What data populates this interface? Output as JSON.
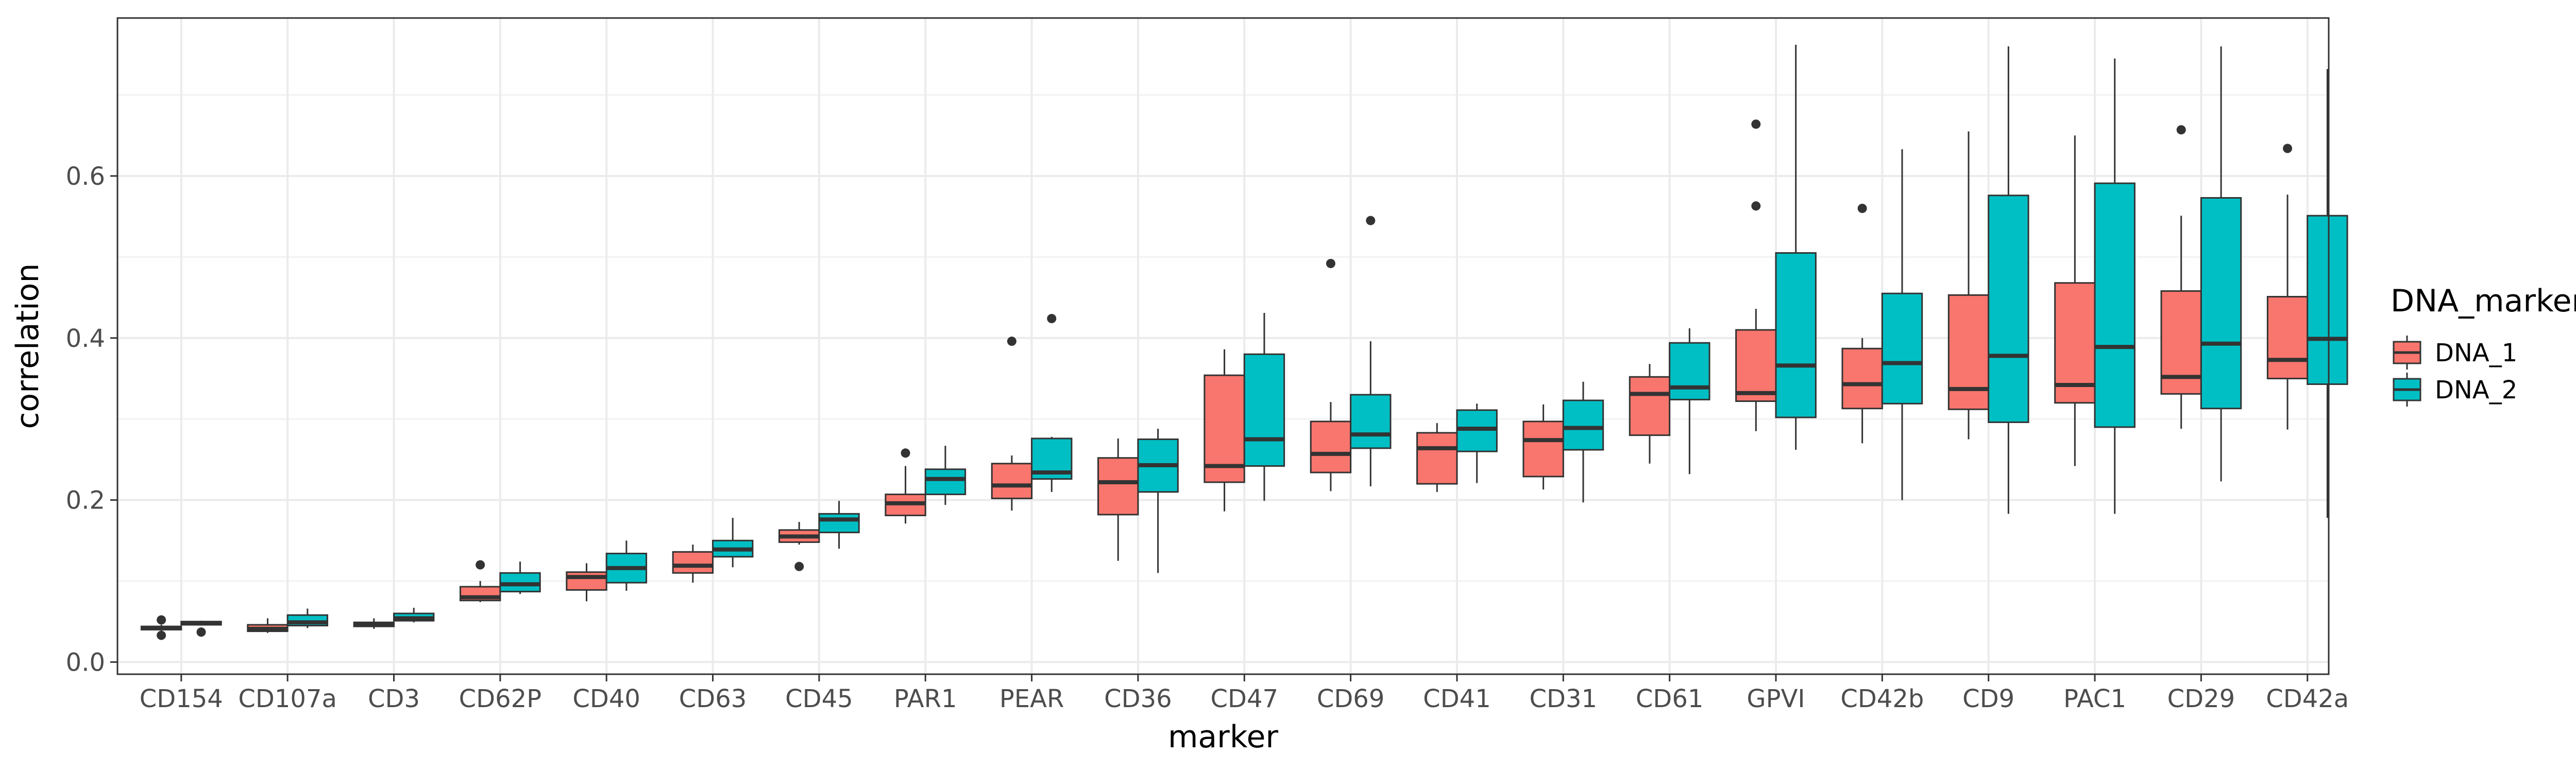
{
  "chart_data": {
    "type": "boxplot",
    "xlabel": "marker",
    "ylabel": "correlation",
    "ylim": [
      -0.015,
      0.795
    ],
    "yticks": [
      0.0,
      0.2,
      0.4,
      0.6
    ],
    "ytick_labels": [
      "0.0",
      "0.2",
      "0.4",
      "0.6"
    ],
    "grid": true,
    "legend": {
      "title": "DNA_marker",
      "placement": "right",
      "entries": [
        "DNA_1",
        "DNA_2"
      ]
    },
    "colors": {
      "DNA_1": "#F8766D",
      "DNA_2": "#00BFC4"
    },
    "categories": [
      "CD154",
      "CD107a",
      "CD3",
      "CD62P",
      "CD40",
      "CD63",
      "CD45",
      "PAR1",
      "PEAR",
      "CD36",
      "CD47",
      "CD69",
      "CD41",
      "CD31",
      "CD61",
      "GPVI",
      "CD42b",
      "CD9",
      "PAC1",
      "CD29",
      "CD42a"
    ],
    "series": [
      {
        "name": "DNA_1",
        "boxes": [
          {
            "whisker_low": 0.038,
            "q1": 0.04,
            "median": 0.042,
            "q3": 0.044,
            "whisker_high": 0.046,
            "outliers": [
              0.052,
              0.033
            ]
          },
          {
            "whisker_low": 0.036,
            "q1": 0.038,
            "median": 0.041,
            "q3": 0.046,
            "whisker_high": 0.054,
            "outliers": []
          },
          {
            "whisker_low": 0.041,
            "q1": 0.044,
            "median": 0.047,
            "q3": 0.049,
            "whisker_high": 0.054,
            "outliers": []
          },
          {
            "whisker_low": 0.074,
            "q1": 0.076,
            "median": 0.08,
            "q3": 0.093,
            "whisker_high": 0.1,
            "outliers": [
              0.12
            ]
          },
          {
            "whisker_low": 0.075,
            "q1": 0.089,
            "median": 0.105,
            "q3": 0.111,
            "whisker_high": 0.122,
            "outliers": []
          },
          {
            "whisker_low": 0.098,
            "q1": 0.11,
            "median": 0.119,
            "q3": 0.136,
            "whisker_high": 0.145,
            "outliers": []
          },
          {
            "whisker_low": 0.145,
            "q1": 0.148,
            "median": 0.155,
            "q3": 0.163,
            "whisker_high": 0.173,
            "outliers": [
              0.118
            ]
          },
          {
            "whisker_low": 0.171,
            "q1": 0.181,
            "median": 0.196,
            "q3": 0.207,
            "whisker_high": 0.242,
            "outliers": [
              0.258
            ]
          },
          {
            "whisker_low": 0.187,
            "q1": 0.202,
            "median": 0.218,
            "q3": 0.245,
            "whisker_high": 0.255,
            "outliers": [
              0.396
            ]
          },
          {
            "whisker_low": 0.125,
            "q1": 0.182,
            "median": 0.222,
            "q3": 0.252,
            "whisker_high": 0.276,
            "outliers": []
          },
          {
            "whisker_low": 0.186,
            "q1": 0.222,
            "median": 0.242,
            "q3": 0.354,
            "whisker_high": 0.386,
            "outliers": []
          },
          {
            "whisker_low": 0.211,
            "q1": 0.234,
            "median": 0.257,
            "q3": 0.297,
            "whisker_high": 0.321,
            "outliers": [
              0.492
            ]
          },
          {
            "whisker_low": 0.21,
            "q1": 0.22,
            "median": 0.264,
            "q3": 0.283,
            "whisker_high": 0.295,
            "outliers": []
          },
          {
            "whisker_low": 0.213,
            "q1": 0.229,
            "median": 0.274,
            "q3": 0.297,
            "whisker_high": 0.318,
            "outliers": []
          },
          {
            "whisker_low": 0.245,
            "q1": 0.28,
            "median": 0.331,
            "q3": 0.352,
            "whisker_high": 0.368,
            "outliers": []
          },
          {
            "whisker_low": 0.285,
            "q1": 0.322,
            "median": 0.332,
            "q3": 0.41,
            "whisker_high": 0.436,
            "outliers": [
              0.664,
              0.563
            ]
          },
          {
            "whisker_low": 0.27,
            "q1": 0.313,
            "median": 0.343,
            "q3": 0.387,
            "whisker_high": 0.4,
            "outliers": [
              0.56
            ]
          },
          {
            "whisker_low": 0.275,
            "q1": 0.312,
            "median": 0.337,
            "q3": 0.453,
            "whisker_high": 0.655,
            "outliers": []
          },
          {
            "whisker_low": 0.242,
            "q1": 0.32,
            "median": 0.342,
            "q3": 0.468,
            "whisker_high": 0.65,
            "outliers": []
          },
          {
            "whisker_low": 0.288,
            "q1": 0.331,
            "median": 0.352,
            "q3": 0.458,
            "whisker_high": 0.551,
            "outliers": [
              0.657
            ]
          },
          {
            "whisker_low": 0.287,
            "q1": 0.35,
            "median": 0.373,
            "q3": 0.451,
            "whisker_high": 0.577,
            "outliers": [
              0.634
            ]
          }
        ]
      },
      {
        "name": "DNA_2",
        "boxes": [
          {
            "whisker_low": 0.045,
            "q1": 0.046,
            "median": 0.048,
            "q3": 0.05,
            "whisker_high": 0.051,
            "outliers": [
              0.037
            ]
          },
          {
            "whisker_low": 0.042,
            "q1": 0.045,
            "median": 0.049,
            "q3": 0.058,
            "whisker_high": 0.066,
            "outliers": []
          },
          {
            "whisker_low": 0.049,
            "q1": 0.051,
            "median": 0.054,
            "q3": 0.06,
            "whisker_high": 0.067,
            "outliers": []
          },
          {
            "whisker_low": 0.084,
            "q1": 0.087,
            "median": 0.096,
            "q3": 0.11,
            "whisker_high": 0.124,
            "outliers": []
          },
          {
            "whisker_low": 0.088,
            "q1": 0.098,
            "median": 0.116,
            "q3": 0.134,
            "whisker_high": 0.15,
            "outliers": []
          },
          {
            "whisker_low": 0.117,
            "q1": 0.13,
            "median": 0.139,
            "q3": 0.15,
            "whisker_high": 0.178,
            "outliers": []
          },
          {
            "whisker_low": 0.14,
            "q1": 0.16,
            "median": 0.176,
            "q3": 0.183,
            "whisker_high": 0.199,
            "outliers": []
          },
          {
            "whisker_low": 0.194,
            "q1": 0.207,
            "median": 0.226,
            "q3": 0.238,
            "whisker_high": 0.267,
            "outliers": []
          },
          {
            "whisker_low": 0.21,
            "q1": 0.226,
            "median": 0.234,
            "q3": 0.276,
            "whisker_high": 0.278,
            "outliers": [
              0.424
            ]
          },
          {
            "whisker_low": 0.11,
            "q1": 0.21,
            "median": 0.243,
            "q3": 0.275,
            "whisker_high": 0.288,
            "outliers": []
          },
          {
            "whisker_low": 0.199,
            "q1": 0.242,
            "median": 0.275,
            "q3": 0.38,
            "whisker_high": 0.431,
            "outliers": []
          },
          {
            "whisker_low": 0.217,
            "q1": 0.264,
            "median": 0.281,
            "q3": 0.33,
            "whisker_high": 0.396,
            "outliers": [
              0.545
            ]
          },
          {
            "whisker_low": 0.221,
            "q1": 0.26,
            "median": 0.288,
            "q3": 0.311,
            "whisker_high": 0.319,
            "outliers": []
          },
          {
            "whisker_low": 0.197,
            "q1": 0.262,
            "median": 0.289,
            "q3": 0.323,
            "whisker_high": 0.346,
            "outliers": []
          },
          {
            "whisker_low": 0.232,
            "q1": 0.324,
            "median": 0.339,
            "q3": 0.394,
            "whisker_high": 0.412,
            "outliers": []
          },
          {
            "whisker_low": 0.262,
            "q1": 0.302,
            "median": 0.366,
            "q3": 0.505,
            "whisker_high": 0.762,
            "outliers": []
          },
          {
            "whisker_low": 0.2,
            "q1": 0.319,
            "median": 0.369,
            "q3": 0.455,
            "whisker_high": 0.633,
            "outliers": []
          },
          {
            "whisker_low": 0.183,
            "q1": 0.296,
            "median": 0.378,
            "q3": 0.576,
            "whisker_high": 0.76,
            "outliers": []
          },
          {
            "whisker_low": 0.183,
            "q1": 0.29,
            "median": 0.389,
            "q3": 0.591,
            "whisker_high": 0.745,
            "outliers": []
          },
          {
            "whisker_low": 0.223,
            "q1": 0.313,
            "median": 0.393,
            "q3": 0.573,
            "whisker_high": 0.76,
            "outliers": []
          },
          {
            "whisker_low": 0.178,
            "q1": 0.343,
            "median": 0.399,
            "q3": 0.551,
            "whisker_high": 0.732,
            "outliers": []
          }
        ]
      }
    ]
  }
}
